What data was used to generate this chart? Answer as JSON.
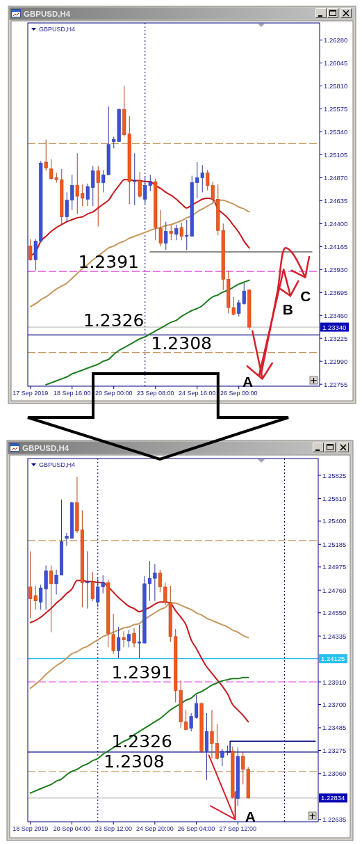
{
  "chart_data": [
    {
      "type": "candlestick",
      "title": "GBPUSD,H4",
      "subtitle": "GBPUSD,H4",
      "categories": [
        "17 Sep 2019",
        null,
        null,
        null,
        null,
        null,
        null,
        null,
        "18 Sep 16:00",
        null,
        null,
        null,
        null,
        null,
        null,
        null,
        "20 Sep 00:00",
        null,
        null,
        null,
        null,
        null,
        null,
        null,
        "23 Sep 08:00",
        null,
        null,
        null,
        null,
        null,
        null,
        null,
        "24 Sep 16:00",
        null,
        null,
        null,
        null,
        null,
        null,
        null,
        "26 Sep 00:00",
        null,
        null,
        null,
        null,
        null,
        null,
        null,
        null,
        null,
        null,
        null,
        null,
        null,
        null,
        null
      ],
      "ohlc": [
        [
          1.2417,
          1.2424,
          1.2402,
          1.2403
        ],
        [
          1.2403,
          1.2424,
          1.2392,
          1.2422
        ],
        [
          1.2422,
          1.2504,
          1.2421,
          1.2502
        ],
        [
          1.2503,
          1.2526,
          1.2494,
          1.2497
        ],
        [
          1.2496,
          1.2506,
          1.2485,
          1.2486
        ],
        [
          1.2487,
          1.2492,
          1.2482,
          1.2485
        ],
        [
          1.2485,
          1.2496,
          1.2439,
          1.2447
        ],
        [
          1.2447,
          1.2472,
          1.2441,
          1.2464
        ],
        [
          1.2464,
          1.249,
          1.2454,
          1.2479
        ],
        [
          1.2479,
          1.2512,
          1.245,
          1.2468
        ],
        [
          1.2471,
          1.248,
          1.2458,
          1.2466
        ],
        [
          1.2465,
          1.2481,
          1.2458,
          1.2478
        ],
        [
          1.2477,
          1.2499,
          1.2458,
          1.2494
        ],
        [
          1.2494,
          1.2499,
          1.2437,
          1.2482
        ],
        [
          1.2482,
          1.2495,
          1.2472,
          1.249
        ],
        [
          1.249,
          1.256,
          1.249,
          1.2521
        ],
        [
          1.2524,
          1.2529,
          1.2517,
          1.2526
        ],
        [
          1.2524,
          1.2558,
          1.2524,
          1.2557
        ],
        [
          1.2557,
          1.2581,
          1.2529,
          1.2531
        ],
        [
          1.2532,
          1.255,
          1.246,
          1.2483
        ],
        [
          1.2483,
          1.2512,
          1.2459,
          1.2484
        ],
        [
          1.2484,
          1.2493,
          1.2466,
          1.2468
        ],
        [
          1.2465,
          1.2488,
          1.246,
          1.2479
        ],
        [
          1.2479,
          1.249,
          1.2473,
          1.2483
        ],
        [
          1.2483,
          1.2486,
          1.2423,
          1.2436
        ],
        [
          1.2435,
          1.2454,
          1.2417,
          1.242
        ],
        [
          1.242,
          1.2442,
          1.2413,
          1.2432
        ],
        [
          1.2432,
          1.2438,
          1.2423,
          1.243
        ],
        [
          1.2429,
          1.2439,
          1.2423,
          1.2435
        ],
        [
          1.2436,
          1.2441,
          1.2423,
          1.2427
        ],
        [
          1.2427,
          1.2444,
          1.2413,
          1.2428
        ],
        [
          1.2427,
          1.2489,
          1.2427,
          1.2482
        ],
        [
          1.2482,
          1.2503,
          1.2466,
          1.2487
        ],
        [
          1.2487,
          1.25,
          1.2472,
          1.2492
        ],
        [
          1.2492,
          1.2495,
          1.2474,
          1.2479
        ],
        [
          1.2479,
          1.2483,
          1.2462,
          1.2465
        ],
        [
          1.2465,
          1.248,
          1.2428,
          1.2433
        ],
        [
          1.2433,
          1.244,
          1.2372,
          1.2383
        ],
        [
          1.2383,
          1.2392,
          1.2348,
          1.2354
        ],
        [
          1.2354,
          1.2365,
          1.2346,
          1.2347
        ],
        [
          1.2348,
          1.2362,
          1.2345,
          1.2359
        ],
        [
          1.2358,
          1.2379,
          1.2357,
          1.2371
        ],
        [
          1.2372,
          1.2372,
          1.2331,
          1.2334
        ],
        null,
        null,
        null,
        null,
        null,
        null,
        null,
        null,
        null,
        null,
        null,
        null,
        null
      ],
      "colors": [
        "#f4581e",
        "#3b4fd8",
        "#3b4fd8",
        "#f4581e",
        "#f4581e",
        "#f4581e",
        "#f4581e",
        "#3b4fd8",
        "#3b4fd8",
        "#f4581e",
        "#f4581e",
        "#3b4fd8",
        "#3b4fd8",
        "#f4581e",
        "#3b4fd8",
        "#3b4fd8",
        "#3b4fd8",
        "#3b4fd8",
        "#f4581e",
        "#f4581e",
        "#3b4fd8",
        "#f4581e",
        "#3b4fd8",
        "#3b4fd8",
        "#f4581e",
        "#f4581e",
        "#3b4fd8",
        "#f4581e",
        "#3b4fd8",
        "#f4581e",
        "#3b4fd8",
        "#3b4fd8",
        "#3b4fd8",
        "#3b4fd8",
        "#f4581e",
        "#f4581e",
        "#f4581e",
        "#f4581e",
        "#f4581e",
        "#f4581e",
        "#3b4fd8",
        "#3b4fd8",
        "#f4581e",
        null,
        null,
        null,
        null,
        null,
        null,
        null,
        null,
        null,
        null,
        null,
        null,
        null
      ],
      "series": [
        {
          "type": "line",
          "color": "#c8181e",
          "values": [
            1.2407,
            1.2411,
            1.2422,
            1.2427,
            1.2432,
            1.2436,
            1.2439,
            1.2442,
            1.2444,
            1.2446,
            1.2447,
            1.245,
            1.2452,
            1.2456,
            1.246,
            1.2464,
            1.2472,
            1.2479,
            1.2485,
            1.2485,
            1.2484,
            1.2484,
            1.2483,
            1.2483,
            1.2479,
            1.2476,
            1.2472,
            1.2469,
            1.2465,
            1.246,
            1.2456,
            1.2459,
            1.2462,
            1.2465,
            1.2466,
            1.2465,
            1.2455,
            1.245,
            1.2445,
            1.2438,
            1.2431,
            1.2422,
            1.2415,
            null,
            null,
            null,
            null,
            null,
            null,
            null,
            null,
            null,
            null,
            null,
            null,
            null
          ]
        },
        {
          "type": "line",
          "color": "#c8965f",
          "values": [
            1.2355,
            1.2358,
            1.2362,
            1.2365,
            1.2369,
            1.2373,
            1.2376,
            1.2379,
            1.2384,
            1.2389,
            1.2394,
            1.2398,
            1.2403,
            1.2407,
            1.2411,
            1.2415,
            1.2417,
            1.242,
            1.2422,
            1.2425,
            1.2427,
            1.2429,
            1.2431,
            1.2433,
            1.2435,
            1.2436,
            1.2438,
            1.2439,
            1.2441,
            1.2443,
            1.2446,
            1.2448,
            1.2452,
            1.2455,
            1.2458,
            1.2461,
            1.2464,
            1.2464,
            1.2462,
            1.246,
            1.2457,
            1.2455,
            1.2452,
            null,
            null,
            null,
            null,
            null,
            null,
            null,
            null,
            null,
            null,
            null,
            null,
            null
          ]
        },
        {
          "type": "line",
          "color": "#1e7d1e",
          "values": [
            null,
            null,
            null,
            1.2275,
            1.2277,
            1.2279,
            1.2281,
            1.2283,
            1.2286,
            1.2288,
            1.229,
            1.2292,
            1.2294,
            1.2296,
            1.2299,
            1.2301,
            1.2306,
            1.231,
            1.2313,
            1.2316,
            1.2319,
            1.2322,
            1.2324,
            1.2327,
            1.233,
            1.2333,
            1.2336,
            1.2339,
            1.2341,
            1.2345,
            1.2348,
            1.2351,
            1.2353,
            1.2356,
            1.2361,
            1.2365,
            1.2367,
            1.237,
            1.2372,
            1.2375,
            1.2378,
            1.238,
            1.2382,
            null,
            null,
            null,
            null,
            null,
            null,
            null,
            null,
            null,
            null,
            null,
            null,
            null
          ]
        },
        {
          "type": "line",
          "color": "#8c8c8c",
          "values": [
            null,
            null,
            null,
            null,
            null,
            null,
            null,
            null,
            null,
            null,
            null,
            null,
            null,
            null,
            null,
            null,
            null,
            null,
            null,
            null,
            null,
            null,
            null,
            1.2411,
            1.2411,
            1.2411,
            1.2411,
            1.2411,
            1.2411,
            1.2411,
            1.2411,
            1.2411,
            1.2411,
            1.2411,
            1.2411,
            1.2411,
            1.2411,
            1.2411,
            1.2411,
            1.2411,
            1.2411,
            1.2411,
            1.2411,
            1.2411,
            1.2411,
            1.2411,
            1.2411,
            1.2411,
            1.2411,
            1.2411,
            1.2411,
            1.2411,
            1.2411,
            1.2411,
            1.2411,
            null
          ]
        }
      ],
      "ylim": [
        1.22735,
        1.26455
      ],
      "yticks": [
        {
          "value": 1.2628,
          "label": "1.26280"
        },
        1.26045,
        {
          "value": 1.2581,
          "label": "1.25810"
        },
        1.25575,
        {
          "value": 1.2534,
          "label": "1.25340"
        },
        1.25105,
        {
          "value": 1.2487,
          "label": "1.24870"
        },
        1.24635,
        {
          "value": 1.244,
          "label": "1.24400"
        },
        1.24165,
        {
          "value": 1.2393,
          "label": "1.23930"
        },
        1.23695,
        {
          "value": 1.2346,
          "label": "1.23460"
        },
        1.23225,
        {
          "value": 1.2299,
          "label": "1.22990"
        },
        1.22755
      ],
      "ref_lines": [
        {
          "axis": "y",
          "value": 1.2522,
          "color": "#c8965f",
          "line_style": "dashed"
        },
        {
          "axis": "y",
          "value": 1.2391,
          "color": "#e040e0",
          "line_style": "dashed"
        },
        {
          "axis": "y",
          "value": 1.2334,
          "label": "1.23340",
          "color": "#c0c0c0",
          "line_style": "solid"
        },
        {
          "axis": "y",
          "value": 1.2326,
          "color": "#000080",
          "line_style": "solid"
        },
        {
          "axis": "y",
          "value": 1.2308,
          "color": "#c8965f",
          "line_style": "dashed"
        }
      ],
      "annotations": [
        "1.2391",
        "1.2326",
        "1.2308",
        "A",
        "B",
        "C"
      ]
    },
    {
      "type": "candlestick",
      "title": "GBPUSD,H4",
      "subtitle": "GBPUSD,H4",
      "categories": [
        "18 Sep 2019",
        null,
        null,
        null,
        null,
        null,
        null,
        null,
        "20 Sep 04:00",
        null,
        null,
        null,
        null,
        null,
        null,
        null,
        "23 Sep 12:00",
        null,
        null,
        null,
        null,
        null,
        null,
        null,
        "24 Sep 20:00",
        null,
        null,
        null,
        null,
        null,
        null,
        null,
        "26 Sep 04:00",
        null,
        null,
        null,
        null,
        null,
        null,
        null,
        "27 Sep 12:00",
        null,
        null,
        null,
        null,
        null,
        null,
        null,
        null,
        null,
        null,
        null,
        null,
        null,
        null,
        null
      ],
      "ohlc": [
        [
          1.2479,
          1.2512,
          1.245,
          1.2468
        ],
        [
          1.2471,
          1.248,
          1.2458,
          1.2466
        ],
        [
          1.2465,
          1.2481,
          1.2458,
          1.2478
        ],
        [
          1.2477,
          1.2499,
          1.2458,
          1.2494
        ],
        [
          1.2494,
          1.2499,
          1.2437,
          1.2482
        ],
        [
          1.2482,
          1.2495,
          1.2472,
          1.249
        ],
        [
          1.249,
          1.256,
          1.249,
          1.2521
        ],
        [
          1.2524,
          1.2529,
          1.2517,
          1.2526
        ],
        [
          1.2524,
          1.2558,
          1.2524,
          1.2557
        ],
        [
          1.2557,
          1.2581,
          1.2529,
          1.2531
        ],
        [
          1.2532,
          1.255,
          1.246,
          1.2483
        ],
        [
          1.2483,
          1.2512,
          1.2459,
          1.2484
        ],
        [
          1.2484,
          1.2493,
          1.2466,
          1.2468
        ],
        [
          1.2465,
          1.2488,
          1.246,
          1.2479
        ],
        [
          1.2479,
          1.249,
          1.2473,
          1.2483
        ],
        [
          1.2483,
          1.2486,
          1.2423,
          1.2436
        ],
        [
          1.2435,
          1.2454,
          1.2417,
          1.242
        ],
        [
          1.242,
          1.2442,
          1.2413,
          1.2432
        ],
        [
          1.2432,
          1.2438,
          1.2423,
          1.243
        ],
        [
          1.2429,
          1.2439,
          1.2423,
          1.2435
        ],
        [
          1.2436,
          1.2441,
          1.2423,
          1.2427
        ],
        [
          1.2427,
          1.2444,
          1.2413,
          1.2428
        ],
        [
          1.2427,
          1.2489,
          1.2427,
          1.2482
        ],
        [
          1.2482,
          1.2503,
          1.2466,
          1.2487
        ],
        [
          1.2487,
          1.25,
          1.2466,
          1.2492
        ],
        [
          1.2492,
          1.2495,
          1.2474,
          1.2479
        ],
        [
          1.2479,
          1.2483,
          1.2462,
          1.2465
        ],
        [
          1.2465,
          1.248,
          1.2428,
          1.2433
        ],
        [
          1.2433,
          1.244,
          1.2372,
          1.2383
        ],
        [
          1.2383,
          1.2392,
          1.2348,
          1.2354
        ],
        [
          1.2354,
          1.2365,
          1.2346,
          1.2347
        ],
        [
          1.2348,
          1.2362,
          1.2345,
          1.2359
        ],
        [
          1.2358,
          1.2379,
          1.2357,
          1.2371
        ],
        [
          1.2371,
          1.2372,
          1.2325,
          1.2327
        ],
        [
          1.2327,
          1.2362,
          1.23,
          1.2345
        ],
        [
          1.2345,
          1.2365,
          1.232,
          1.2334
        ],
        [
          1.2334,
          1.2352,
          1.2319,
          1.232
        ],
        [
          1.2321,
          1.2329,
          1.2313,
          1.2327
        ],
        [
          1.2326,
          1.2332,
          1.2323,
          1.2327
        ],
        [
          1.2327,
          1.2331,
          1.2283,
          1.2284
        ],
        [
          1.2283,
          1.233,
          1.2276,
          1.2322
        ],
        [
          1.2322,
          1.2326,
          1.2296,
          1.231
        ],
        [
          1.231,
          1.2312,
          1.2283,
          1.22834
        ],
        null,
        null,
        null,
        null,
        null,
        null,
        null,
        null,
        null,
        null,
        null,
        null,
        null
      ],
      "colors": [
        "#f4581e",
        "#f4581e",
        "#3b4fd8",
        "#3b4fd8",
        "#f4581e",
        "#3b4fd8",
        "#3b4fd8",
        "#3b4fd8",
        "#3b4fd8",
        "#f4581e",
        "#f4581e",
        "#3b4fd8",
        "#f4581e",
        "#3b4fd8",
        "#3b4fd8",
        "#f4581e",
        "#f4581e",
        "#3b4fd8",
        "#f4581e",
        "#3b4fd8",
        "#f4581e",
        "#3b4fd8",
        "#3b4fd8",
        "#3b4fd8",
        "#3b4fd8",
        "#f4581e",
        "#f4581e",
        "#f4581e",
        "#f4581e",
        "#f4581e",
        "#f4581e",
        "#3b4fd8",
        "#3b4fd8",
        "#f4581e",
        "#3b4fd8",
        "#f4581e",
        "#f4581e",
        "#3b4fd8",
        "#3b4fd8",
        "#f4581e",
        "#3b4fd8",
        "#f4581e",
        "#f4581e",
        null,
        null,
        null,
        null,
        null,
        null,
        null,
        null,
        null,
        null,
        null,
        null,
        null
      ],
      "series": [
        {
          "type": "line",
          "color": "#c8181e",
          "values": [
            1.2446,
            1.2448,
            1.2451,
            1.2455,
            1.2459,
            1.2464,
            1.2468,
            1.2473,
            1.2477,
            1.2485,
            1.2485,
            1.2484,
            1.2484,
            1.2483,
            1.2483,
            1.2479,
            1.2474,
            1.2469,
            1.2465,
            1.2461,
            1.2459,
            1.2456,
            1.2458,
            1.246,
            1.2463,
            1.2465,
            1.2465,
            1.2464,
            1.2457,
            1.2451,
            1.2444,
            1.243,
            1.2422,
            1.2413,
            1.2405,
            1.2399,
            1.2393,
            1.2387,
            1.238,
            1.237,
            1.2365,
            1.236,
            1.2354,
            null,
            null,
            null,
            null,
            null,
            null,
            null,
            null,
            null,
            null,
            null,
            null,
            null
          ]
        },
        {
          "type": "line",
          "color": "#c8965f",
          "values": [
            1.2385,
            1.2389,
            1.2393,
            1.2398,
            1.2402,
            1.2406,
            1.2409,
            1.2413,
            1.2417,
            1.2419,
            1.2422,
            1.2424,
            1.2427,
            1.243,
            1.2433,
            1.2435,
            1.2437,
            1.2439,
            1.2441,
            1.2442,
            1.2444,
            1.2445,
            1.2449,
            1.2452,
            1.2455,
            1.2458,
            1.246,
            1.2464,
            1.2464,
            1.2462,
            1.246,
            1.2458,
            1.2455,
            1.2453,
            1.245,
            1.2448,
            1.2446,
            1.2444,
            1.2442,
            1.2439,
            1.2437,
            1.2434,
            1.2432,
            null,
            null,
            null,
            null,
            null,
            null,
            null,
            null,
            null,
            null,
            null,
            null,
            null
          ]
        },
        {
          "type": "line",
          "color": "#1e7d1e",
          "values": [
            1.2288,
            1.229,
            1.2292,
            1.2294,
            1.2296,
            1.2299,
            1.2301,
            1.2305,
            1.2308,
            1.231,
            1.2313,
            1.2315,
            1.2318,
            1.232,
            1.2324,
            1.2327,
            1.233,
            1.2333,
            1.2336,
            1.2338,
            1.2342,
            1.2345,
            1.2348,
            1.2351,
            1.2354,
            1.2357,
            1.2361,
            1.2365,
            1.2368,
            1.2371,
            1.2374,
            1.2376,
            1.238,
            1.2382,
            1.2385,
            1.2388,
            1.239,
            1.2392,
            1.2393,
            1.2394,
            1.2394,
            1.2395,
            1.2395,
            null,
            null,
            null,
            null,
            null,
            null,
            null,
            null,
            null,
            null,
            null,
            null,
            null
          ]
        },
        {
          "type": "step",
          "color": "#000080",
          "values": [
            null,
            null,
            null,
            null,
            null,
            null,
            null,
            null,
            null,
            null,
            null,
            null,
            null,
            null,
            null,
            null,
            null,
            null,
            null,
            null,
            null,
            null,
            null,
            null,
            null,
            null,
            null,
            null,
            null,
            null,
            null,
            null,
            null,
            null,
            null,
            null,
            null,
            null,
            1.2326,
            1.2336,
            1.2336,
            1.2336,
            1.2336,
            1.2336,
            1.2336,
            1.2336,
            1.2336,
            1.2336,
            1.2336,
            1.2336,
            1.2336,
            1.2336,
            1.2336,
            1.2336,
            1.2336,
            1.2336
          ]
        }
      ],
      "ylim": [
        1.22614,
        1.2598
      ],
      "yticks": [
        1.25825,
        {
          "value": 1.2561,
          "label": "1.25610"
        },
        {
          "value": 1.254,
          "label": "1.25400"
        },
        1.25185,
        1.24975,
        {
          "value": 1.2476,
          "label": "1.24760"
        },
        {
          "value": 1.2455,
          "label": "1.24550"
        },
        1.24335,
        {
          "value": 1.2391,
          "label": "1.23910"
        },
        {
          "value": 1.237,
          "label": "1.23700"
        },
        1.23485,
        1.23275,
        {
          "value": 1.2306,
          "label": "1.23060"
        },
        1.22635
      ],
      "ref_lines": [
        {
          "axis": "y",
          "value": 1.2522,
          "color": "#c8965f",
          "line_style": "dashed"
        },
        {
          "axis": "y",
          "value": 1.24125,
          "label": "1.24125",
          "color": "#28c0ee",
          "line_style": "solid"
        },
        {
          "axis": "y",
          "value": 1.2391,
          "color": "#e040e0",
          "line_style": "dashed"
        },
        {
          "axis": "y",
          "value": 1.2326,
          "color": "#000080",
          "line_style": "solid"
        },
        {
          "axis": "y",
          "value": 1.2308,
          "color": "#c8965f",
          "line_style": "dashed"
        },
        {
          "axis": "y",
          "value": 1.22834,
          "label": "1.22834",
          "color": "#c0c0c0",
          "line_style": "solid"
        }
      ],
      "annotations": [
        "1.2391",
        "1.2326",
        "1.2308",
        {
          "text": "A",
          "x": "27 Sep 12:00",
          "y": 1.2276
        }
      ]
    }
  ]
}
